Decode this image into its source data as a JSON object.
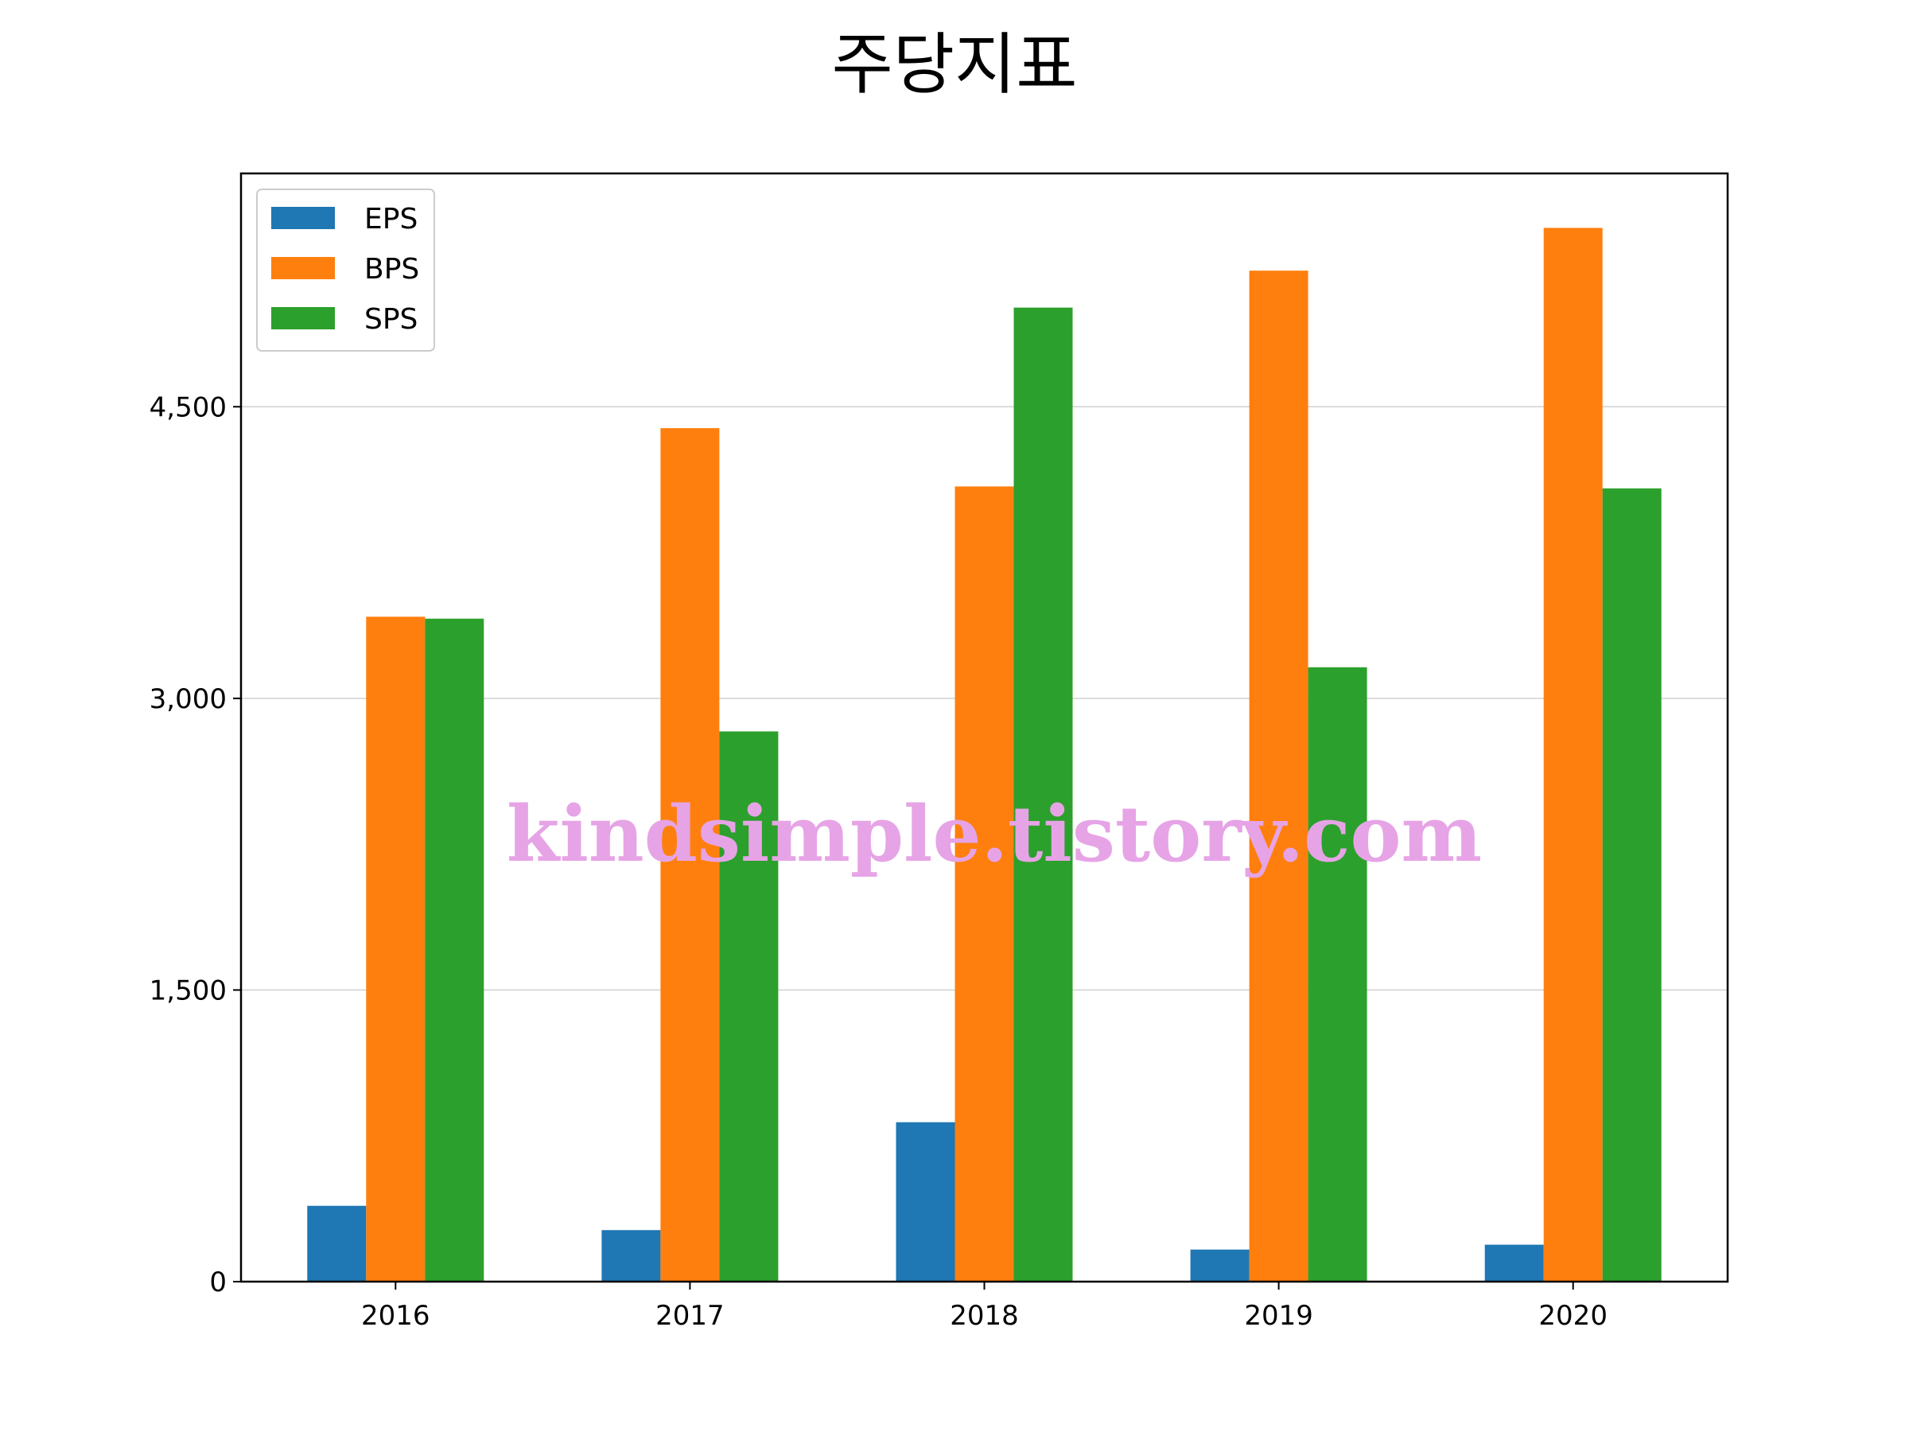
{
  "title": "주당지표",
  "watermark": "kindsimple.tistory.com",
  "colors": {
    "EPS": "#1f77b4",
    "BPS": "#ff7f0e",
    "SPS": "#2ca02c",
    "grid": "#d0d0d0",
    "watermark": "#e6a4e6"
  },
  "chart_data": {
    "type": "bar",
    "title": "주당지표",
    "categories": [
      "2016",
      "2017",
      "2018",
      "2019",
      "2020"
    ],
    "series": [
      {
        "name": "EPS",
        "values": [
          390,
          265,
          820,
          165,
          190
        ]
      },
      {
        "name": "BPS",
        "values": [
          3420,
          4390,
          4090,
          5200,
          5420
        ]
      },
      {
        "name": "SPS",
        "values": [
          3410,
          2830,
          5010,
          3160,
          4080
        ]
      }
    ],
    "xlabel": "",
    "ylabel": "",
    "ylim": [
      0,
      5700
    ],
    "yticks": [
      0,
      1500,
      3000,
      4500
    ],
    "ytick_labels": [
      "0",
      "1,500",
      "3,000",
      "4,500"
    ],
    "grid": "horizontal",
    "legend": "top-left"
  }
}
